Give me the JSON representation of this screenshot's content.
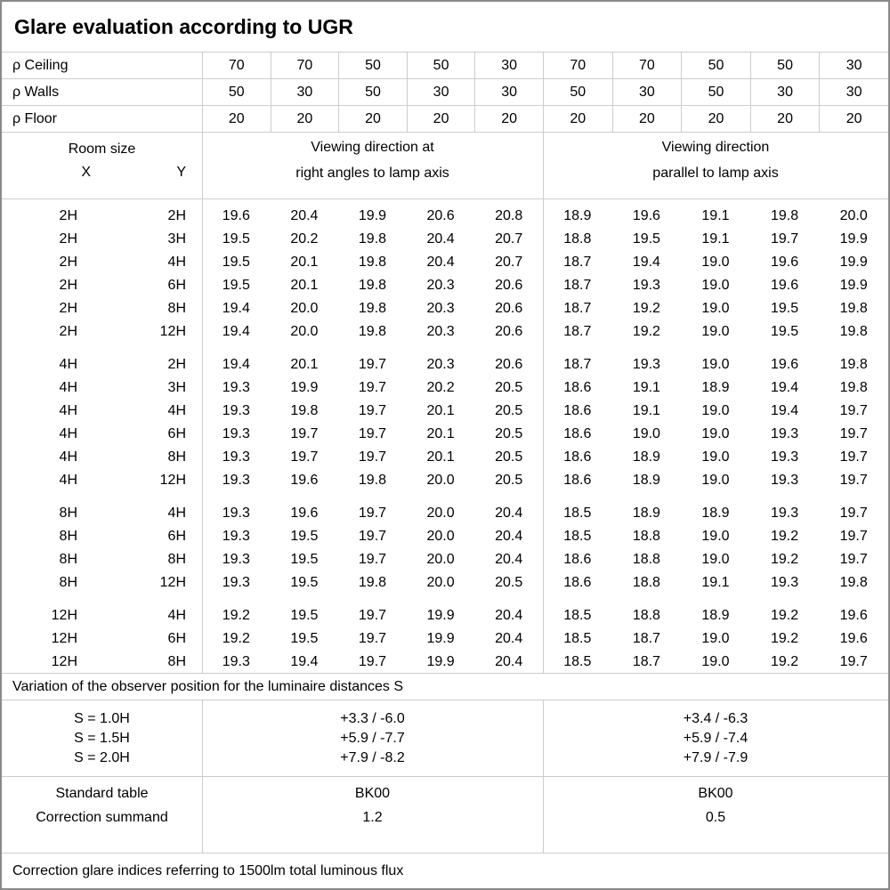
{
  "title": "Glare evaluation according to UGR",
  "colors": {
    "background": "#ffffff",
    "text": "#000000",
    "grid_line": "#cccccc",
    "outer_border": "#8a8a8a"
  },
  "reflectances": {
    "rows": [
      {
        "label": "ρ Ceiling",
        "values": [
          "70",
          "70",
          "50",
          "50",
          "30",
          "70",
          "70",
          "50",
          "50",
          "30"
        ]
      },
      {
        "label": "ρ Walls",
        "values": [
          "50",
          "30",
          "50",
          "30",
          "30",
          "50",
          "30",
          "50",
          "30",
          "30"
        ]
      },
      {
        "label": "ρ Floor",
        "values": [
          "20",
          "20",
          "20",
          "20",
          "20",
          "20",
          "20",
          "20",
          "20",
          "20"
        ]
      }
    ]
  },
  "header": {
    "room_size_label": "Room size",
    "x_label": "X",
    "y_label": "Y",
    "section1_line1": "Viewing direction at",
    "section1_line2": "right angles to lamp axis",
    "section2_line1": "Viewing direction",
    "section2_line2": "parallel to lamp axis"
  },
  "ugr_table": {
    "blocks": [
      {
        "rows": [
          {
            "x": "2H",
            "y": "2H",
            "v": [
              "19.6",
              "20.4",
              "19.9",
              "20.6",
              "20.8",
              "18.9",
              "19.6",
              "19.1",
              "19.8",
              "20.0"
            ]
          },
          {
            "x": "2H",
            "y": "3H",
            "v": [
              "19.5",
              "20.2",
              "19.8",
              "20.4",
              "20.7",
              "18.8",
              "19.5",
              "19.1",
              "19.7",
              "19.9"
            ]
          },
          {
            "x": "2H",
            "y": "4H",
            "v": [
              "19.5",
              "20.1",
              "19.8",
              "20.4",
              "20.7",
              "18.7",
              "19.4",
              "19.0",
              "19.6",
              "19.9"
            ]
          },
          {
            "x": "2H",
            "y": "6H",
            "v": [
              "19.5",
              "20.1",
              "19.8",
              "20.3",
              "20.6",
              "18.7",
              "19.3",
              "19.0",
              "19.6",
              "19.9"
            ]
          },
          {
            "x": "2H",
            "y": "8H",
            "v": [
              "19.4",
              "20.0",
              "19.8",
              "20.3",
              "20.6",
              "18.7",
              "19.2",
              "19.0",
              "19.5",
              "19.8"
            ]
          },
          {
            "x": "2H",
            "y": "12H",
            "v": [
              "19.4",
              "20.0",
              "19.8",
              "20.3",
              "20.6",
              "18.7",
              "19.2",
              "19.0",
              "19.5",
              "19.8"
            ]
          }
        ]
      },
      {
        "rows": [
          {
            "x": "4H",
            "y": "2H",
            "v": [
              "19.4",
              "20.1",
              "19.7",
              "20.3",
              "20.6",
              "18.7",
              "19.3",
              "19.0",
              "19.6",
              "19.8"
            ]
          },
          {
            "x": "4H",
            "y": "3H",
            "v": [
              "19.3",
              "19.9",
              "19.7",
              "20.2",
              "20.5",
              "18.6",
              "19.1",
              "18.9",
              "19.4",
              "19.8"
            ]
          },
          {
            "x": "4H",
            "y": "4H",
            "v": [
              "19.3",
              "19.8",
              "19.7",
              "20.1",
              "20.5",
              "18.6",
              "19.1",
              "19.0",
              "19.4",
              "19.7"
            ]
          },
          {
            "x": "4H",
            "y": "6H",
            "v": [
              "19.3",
              "19.7",
              "19.7",
              "20.1",
              "20.5",
              "18.6",
              "19.0",
              "19.0",
              "19.3",
              "19.7"
            ]
          },
          {
            "x": "4H",
            "y": "8H",
            "v": [
              "19.3",
              "19.7",
              "19.7",
              "20.1",
              "20.5",
              "18.6",
              "18.9",
              "19.0",
              "19.3",
              "19.7"
            ]
          },
          {
            "x": "4H",
            "y": "12H",
            "v": [
              "19.3",
              "19.6",
              "19.8",
              "20.0",
              "20.5",
              "18.6",
              "18.9",
              "19.0",
              "19.3",
              "19.7"
            ]
          }
        ]
      },
      {
        "rows": [
          {
            "x": "8H",
            "y": "4H",
            "v": [
              "19.3",
              "19.6",
              "19.7",
              "20.0",
              "20.4",
              "18.5",
              "18.9",
              "18.9",
              "19.3",
              "19.7"
            ]
          },
          {
            "x": "8H",
            "y": "6H",
            "v": [
              "19.3",
              "19.5",
              "19.7",
              "20.0",
              "20.4",
              "18.5",
              "18.8",
              "19.0",
              "19.2",
              "19.7"
            ]
          },
          {
            "x": "8H",
            "y": "8H",
            "v": [
              "19.3",
              "19.5",
              "19.7",
              "20.0",
              "20.4",
              "18.6",
              "18.8",
              "19.0",
              "19.2",
              "19.7"
            ]
          },
          {
            "x": "8H",
            "y": "12H",
            "v": [
              "19.3",
              "19.5",
              "19.8",
              "20.0",
              "20.5",
              "18.6",
              "18.8",
              "19.1",
              "19.3",
              "19.8"
            ]
          }
        ]
      },
      {
        "rows": [
          {
            "x": "12H",
            "y": "4H",
            "v": [
              "19.2",
              "19.5",
              "19.7",
              "19.9",
              "20.4",
              "18.5",
              "18.8",
              "18.9",
              "19.2",
              "19.6"
            ]
          },
          {
            "x": "12H",
            "y": "6H",
            "v": [
              "19.2",
              "19.5",
              "19.7",
              "19.9",
              "20.4",
              "18.5",
              "18.7",
              "19.0",
              "19.2",
              "19.6"
            ]
          },
          {
            "x": "12H",
            "y": "8H",
            "v": [
              "19.3",
              "19.4",
              "19.7",
              "19.9",
              "20.4",
              "18.5",
              "18.7",
              "19.0",
              "19.2",
              "19.7"
            ]
          }
        ]
      }
    ]
  },
  "variation": {
    "note": "Variation of the observer position for the luminaire distances S",
    "rows": [
      {
        "label": "S = 1.0H",
        "right_angle": "+3.3 / -6.0",
        "parallel": "+3.4 / -6.3"
      },
      {
        "label": "S = 1.5H",
        "right_angle": "+5.9 / -7.7",
        "parallel": "+5.9 / -7.4"
      },
      {
        "label": "S = 2.0H",
        "right_angle": "+7.9 / -8.2",
        "parallel": "+7.9 / -7.9"
      }
    ]
  },
  "standard": {
    "row_labels": [
      "Standard table",
      "Correction summand"
    ],
    "right_angle": [
      "BK00",
      "1.2"
    ],
    "parallel": [
      "BK00",
      "0.5"
    ]
  },
  "footer": {
    "note": "Correction glare indices referring to 1500lm total luminous flux"
  }
}
